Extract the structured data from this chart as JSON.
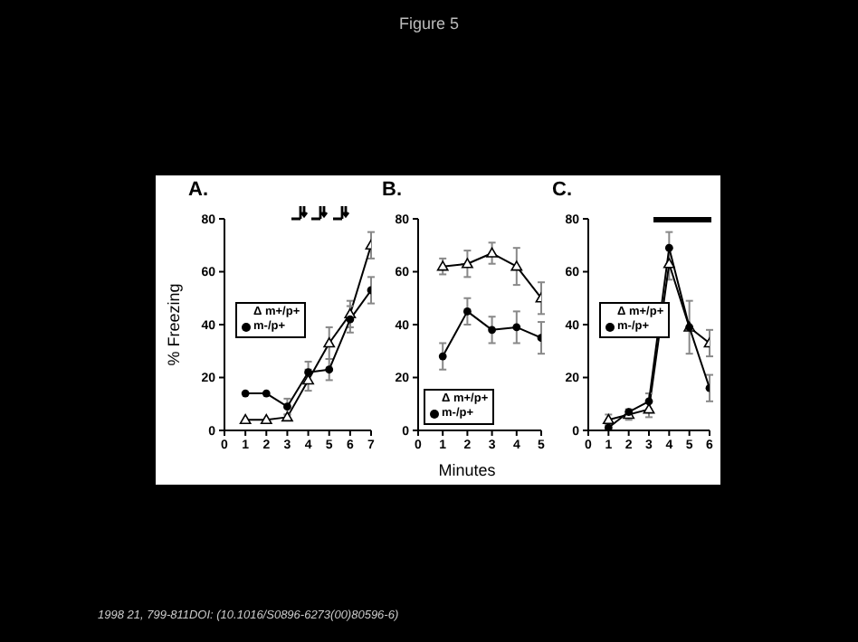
{
  "chart_data": [
    {
      "type": "line",
      "title": "A.",
      "ylabel": "% Freezing",
      "annotations": [
        "Figure 5",
        "1998 21, 799-811DOI: (10.1016/S0896-6273(00)80596-6)"
      ],
      "x": [
        1,
        2,
        3,
        4,
        5,
        6,
        7
      ],
      "xlim": [
        0,
        7
      ],
      "xticks": [
        0,
        1,
        2,
        3,
        4,
        5,
        6,
        7
      ],
      "ylim": [
        0,
        80
      ],
      "yticks": [
        0,
        20,
        40,
        60,
        80
      ],
      "legend": "left",
      "grid": false,
      "series": [
        {
          "name": "Δ m+/p+",
          "color": "#000000",
          "marker": "triangle",
          "values": [
            4,
            4,
            5,
            19,
            33,
            44,
            70
          ],
          "errors": [
            null,
            null,
            1,
            4,
            6,
            5,
            5
          ]
        },
        {
          "name": "m-/p+",
          "color": "#000000",
          "marker": "circle",
          "values": [
            14,
            14,
            9,
            22,
            23,
            42,
            53
          ],
          "errors": [
            null,
            null,
            3,
            4,
            4,
            5,
            5
          ]
        }
      ]
    },
    {
      "type": "line",
      "title": "B.",
      "xlabel": "Minutes",
      "x": [
        1,
        2,
        3,
        4,
        5
      ],
      "xlim": [
        0,
        5
      ],
      "xticks": [
        0,
        1,
        2,
        3,
        4,
        5
      ],
      "ylim": [
        0,
        80
      ],
      "yticks": [
        0,
        20,
        40,
        60,
        80
      ],
      "legend": "bottom left",
      "grid": false,
      "series": [
        {
          "name": "Δ m+/p+",
          "color": "#000000",
          "marker": "triangle",
          "values": [
            62,
            63,
            67,
            62,
            50
          ],
          "errors": [
            3,
            5,
            4,
            7,
            6
          ]
        },
        {
          "name": "m-/p+",
          "color": "#000000",
          "marker": "circle",
          "values": [
            28,
            45,
            38,
            39,
            35
          ],
          "errors": [
            5,
            5,
            5,
            6,
            6
          ]
        }
      ]
    },
    {
      "type": "line",
      "title": "C.",
      "x": [
        1,
        2,
        3,
        4,
        5,
        6
      ],
      "xlim": [
        0,
        6
      ],
      "xticks": [
        0,
        1,
        2,
        3,
        4,
        5,
        6
      ],
      "ylim": [
        0,
        80
      ],
      "yticks": [
        0,
        20,
        40,
        60,
        80
      ],
      "legend": "left",
      "grid": false,
      "series": [
        {
          "name": "Δ m+/p+",
          "color": "#000000",
          "marker": "triangle",
          "values": [
            4,
            6,
            8,
            63,
            39,
            33
          ],
          "errors": [
            2,
            2,
            3,
            6,
            10,
            5
          ]
        },
        {
          "name": "m-/p+",
          "color": "#000000",
          "marker": "circle",
          "values": [
            1,
            7,
            11,
            69,
            39,
            16
          ],
          "errors": [
            1,
            null,
            3,
            6,
            null,
            5
          ]
        }
      ]
    }
  ]
}
